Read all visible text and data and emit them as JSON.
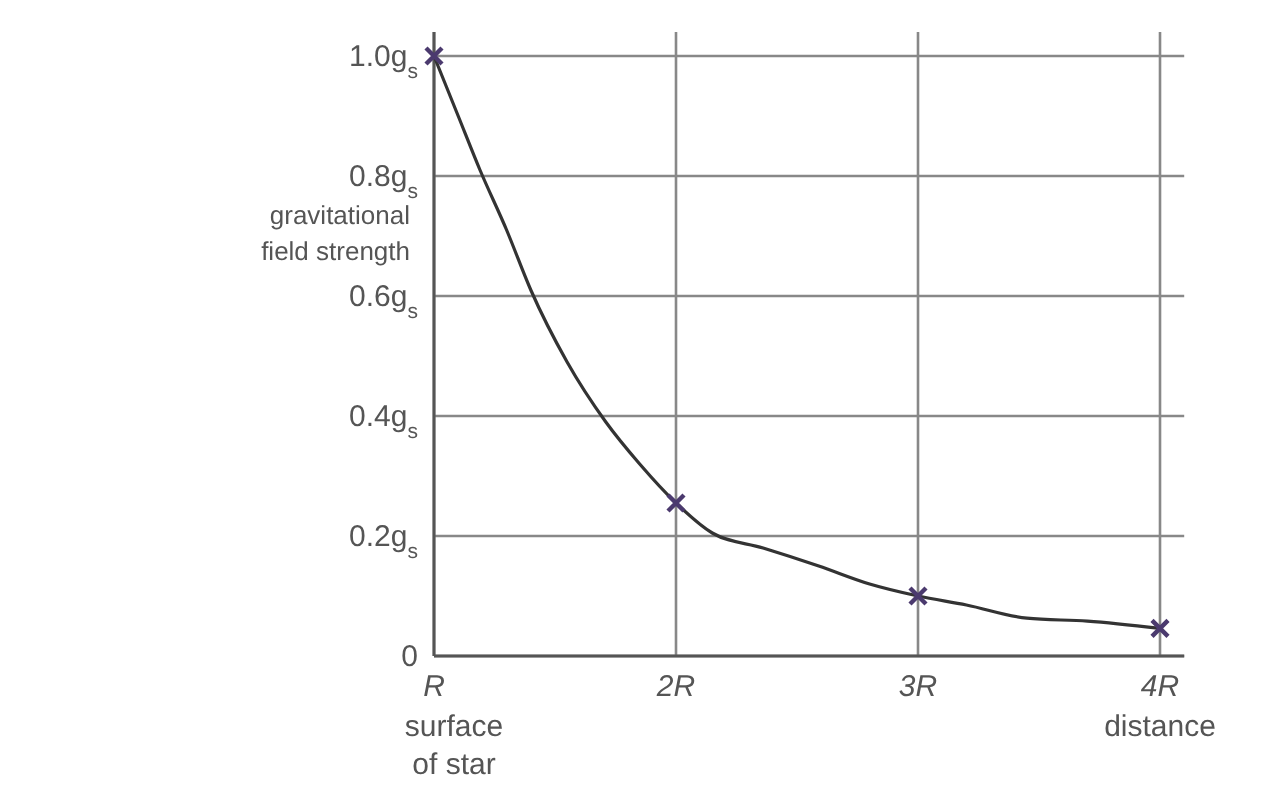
{
  "chart_data": {
    "type": "line",
    "ylabel": "gravitational field strength",
    "xlabel": "distance",
    "annotations": [
      "surface of star"
    ],
    "xlim": [
      1,
      4.1
    ],
    "ylim": [
      0,
      1.04
    ],
    "xticks": [
      {
        "value": 1,
        "label": "R"
      },
      {
        "value": 2,
        "label": "2R"
      },
      {
        "value": 3,
        "label": "3R"
      },
      {
        "value": 4,
        "label": "4R"
      }
    ],
    "yticks": [
      {
        "value": 0,
        "label": "0"
      },
      {
        "value": 0.2,
        "label": "0.2g$_{s}$"
      },
      {
        "value": 0.4,
        "label": "0.4g$_{s}$"
      },
      {
        "value": 0.6,
        "label": "0.6g$_{s}$"
      },
      {
        "value": 0.8,
        "label": "0.8g$_{s}$"
      },
      {
        "value": 1,
        "label": "1.0g$_{s}$"
      }
    ],
    "grid": true,
    "series": [
      {
        "color": "#333333",
        "marker": "none",
        "x": [
          1,
          1.1,
          1.19,
          1.3,
          1.4,
          1.55,
          1.71,
          1.85,
          2,
          2.15,
          2.36,
          2.59,
          2.8,
          3,
          3.2,
          3.45,
          3.7,
          4
        ],
        "values": [
          1.0,
          0.9,
          0.81,
          0.71,
          0.61,
          0.49,
          0.39,
          0.32,
          0.255,
          0.205,
          0.18,
          0.15,
          0.12,
          0.1,
          0.085,
          0.063,
          0.058,
          0.046
        ]
      },
      {
        "type": "scatter",
        "color": "#4b3a6e",
        "marker": "cross",
        "x": [
          1,
          2,
          3,
          4
        ],
        "values": [
          1.0,
          0.255,
          0.1,
          0.046
        ]
      }
    ]
  }
}
